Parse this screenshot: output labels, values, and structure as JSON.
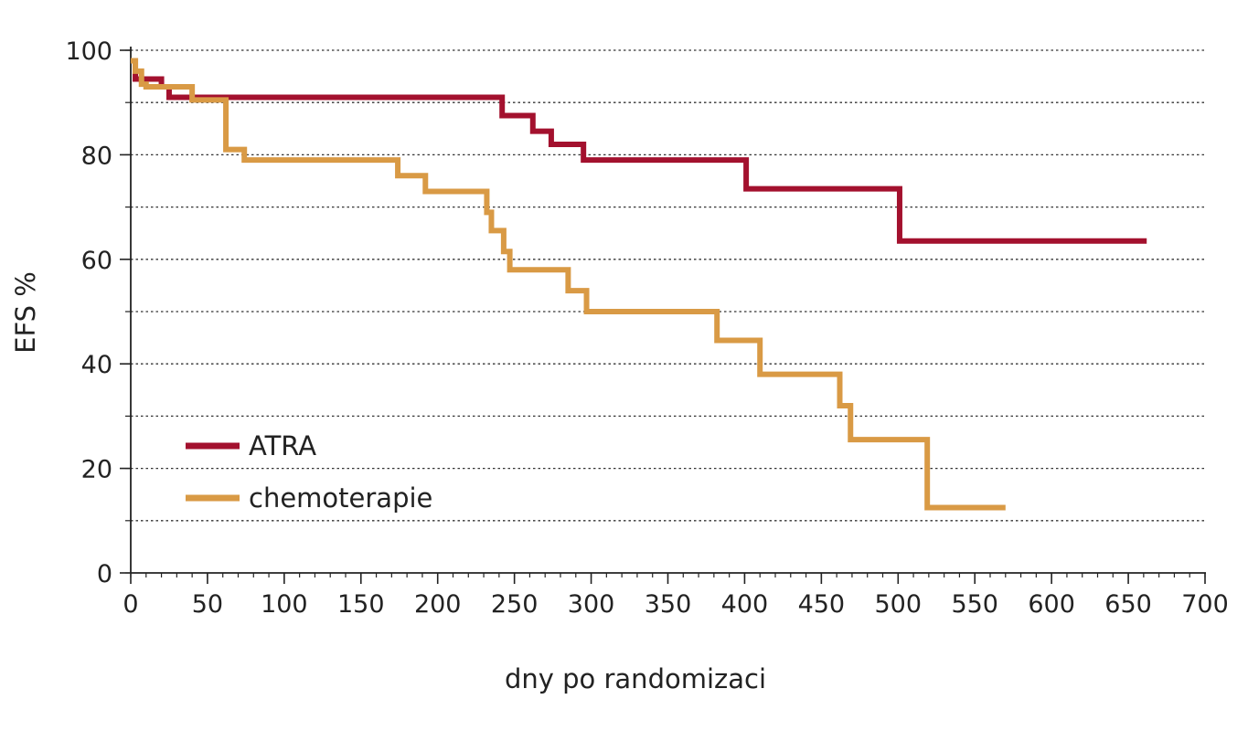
{
  "chart_data": {
    "type": "line",
    "step": true,
    "xlabel": "dny po randomizaci",
    "ylabel": "EFS %",
    "xlim": [
      0,
      700
    ],
    "ylim": [
      0,
      100
    ],
    "x_ticks": [
      0,
      50,
      100,
      150,
      200,
      250,
      300,
      350,
      400,
      450,
      500,
      550,
      600,
      650,
      700
    ],
    "y_ticks": [
      0,
      20,
      40,
      60,
      80,
      100
    ],
    "grid": {
      "horizontal_dotted": true,
      "every": 10
    },
    "legend_position": "bottom-left",
    "series": [
      {
        "name": "ATRA",
        "color": "#a3112e",
        "x": [
          0,
          3,
          14,
          20,
          25,
          242,
          262,
          274,
          295,
          401,
          501,
          662
        ],
        "y": [
          98,
          94.5,
          94.5,
          93,
          91,
          87.5,
          84.5,
          82,
          79,
          73.5,
          63.5,
          63.5
        ]
      },
      {
        "name": "chemoterapie",
        "color": "#d99a45",
        "x": [
          0,
          3,
          7,
          10,
          30,
          40,
          58,
          62,
          74,
          174,
          192,
          232,
          235,
          238,
          243,
          247,
          285,
          297,
          382,
          410,
          462,
          469,
          519,
          570
        ],
        "y": [
          98,
          96,
          93.5,
          93,
          93,
          90.5,
          90.5,
          81,
          79,
          76,
          73,
          69,
          65.5,
          65.5,
          61.5,
          58,
          54,
          50,
          44.5,
          38,
          32,
          25.5,
          12.5,
          12.5
        ]
      }
    ]
  }
}
